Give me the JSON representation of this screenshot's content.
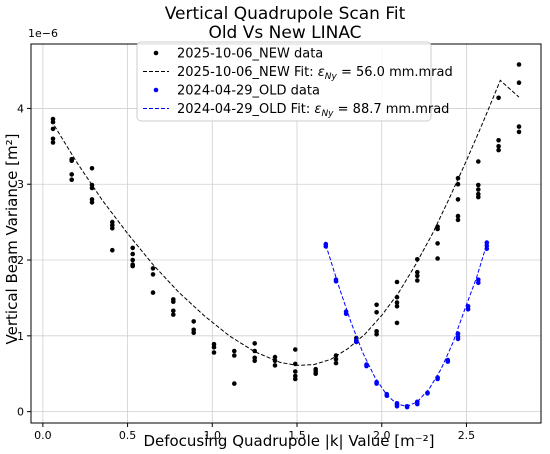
{
  "chart_data": {
    "type": "scatter",
    "title": "Vertical Quadrupole Scan Fit",
    "subtitle": "Old Vs New LINAC",
    "xlabel": "Defocusing Quadrupole |k| Value [m⁻²]",
    "ylabel": "Vertical Beam Variance [m²]",
    "y_multiplier": "1e−6",
    "xlim": [
      -0.07,
      2.94
    ],
    "ylim": [
      -0.15,
      4.85
    ],
    "xticks": [
      0.0,
      0.5,
      1.0,
      1.5,
      2.0,
      2.5
    ],
    "xtick_labels": [
      "0.0",
      "0.5",
      "1.0",
      "1.5",
      "2.0",
      "2.5"
    ],
    "yticks": [
      0,
      1,
      2,
      3,
      4
    ],
    "ytick_labels": [
      "0",
      "1",
      "2",
      "3",
      "4"
    ],
    "grid": true,
    "legend_position": "top-center",
    "series": [
      {
        "name": "2025-10-06_NEW data",
        "kind": "points",
        "color": "#000000",
        "points": [
          [
            0.06,
            3.86
          ],
          [
            0.06,
            3.82
          ],
          [
            0.06,
            3.73
          ],
          [
            0.06,
            3.6
          ],
          [
            0.06,
            3.55
          ],
          [
            0.17,
            3.33
          ],
          [
            0.17,
            3.31
          ],
          [
            0.17,
            3.13
          ],
          [
            0.17,
            3.06
          ],
          [
            0.29,
            3.21
          ],
          [
            0.29,
            2.99
          ],
          [
            0.29,
            2.95
          ],
          [
            0.29,
            2.8
          ],
          [
            0.29,
            2.76
          ],
          [
            0.41,
            2.5
          ],
          [
            0.41,
            2.46
          ],
          [
            0.41,
            2.42
          ],
          [
            0.41,
            2.13
          ],
          [
            0.53,
            2.16
          ],
          [
            0.53,
            2.08
          ],
          [
            0.53,
            2.0
          ],
          [
            0.53,
            1.94
          ],
          [
            0.53,
            1.92
          ],
          [
            0.65,
            1.89
          ],
          [
            0.65,
            1.81
          ],
          [
            0.65,
            1.57
          ],
          [
            0.77,
            1.48
          ],
          [
            0.77,
            1.45
          ],
          [
            0.77,
            1.33
          ],
          [
            0.77,
            1.28
          ],
          [
            0.89,
            1.19
          ],
          [
            0.89,
            1.08
          ],
          [
            0.89,
            1.04
          ],
          [
            1.01,
            0.89
          ],
          [
            1.01,
            0.85
          ],
          [
            1.01,
            0.78
          ],
          [
            1.13,
            0.8
          ],
          [
            1.13,
            0.74
          ],
          [
            1.13,
            0.37
          ],
          [
            1.25,
            0.9
          ],
          [
            1.25,
            0.8
          ],
          [
            1.25,
            0.71
          ],
          [
            1.25,
            0.67
          ],
          [
            1.37,
            0.72
          ],
          [
            1.37,
            0.67
          ],
          [
            1.37,
            0.61
          ],
          [
            1.49,
            0.82
          ],
          [
            1.49,
            0.63
          ],
          [
            1.49,
            0.53
          ],
          [
            1.49,
            0.47
          ],
          [
            1.49,
            0.43
          ],
          [
            1.61,
            0.56
          ],
          [
            1.61,
            0.53
          ],
          [
            1.61,
            0.5
          ],
          [
            1.73,
            0.74
          ],
          [
            1.73,
            0.69
          ],
          [
            1.73,
            0.64
          ],
          [
            1.85,
            0.97
          ],
          [
            1.85,
            0.94
          ],
          [
            1.85,
            0.92
          ],
          [
            1.97,
            1.41
          ],
          [
            1.97,
            1.31
          ],
          [
            1.97,
            1.06
          ],
          [
            1.97,
            1.02
          ],
          [
            2.09,
            1.71
          ],
          [
            2.09,
            1.51
          ],
          [
            2.09,
            1.44
          ],
          [
            2.09,
            1.39
          ],
          [
            2.09,
            1.17
          ],
          [
            2.21,
            2.01
          ],
          [
            2.21,
            1.84
          ],
          [
            2.21,
            1.79
          ],
          [
            2.21,
            1.73
          ],
          [
            2.33,
            2.44
          ],
          [
            2.33,
            2.41
          ],
          [
            2.33,
            2.22
          ],
          [
            2.33,
            2.02
          ],
          [
            2.45,
            3.08
          ],
          [
            2.45,
            3.0
          ],
          [
            2.45,
            2.8
          ],
          [
            2.45,
            2.58
          ],
          [
            2.45,
            2.53
          ],
          [
            2.57,
            3.3
          ],
          [
            2.57,
            2.99
          ],
          [
            2.57,
            2.93
          ],
          [
            2.57,
            2.87
          ],
          [
            2.57,
            2.83
          ],
          [
            2.69,
            4.14
          ],
          [
            2.69,
            3.58
          ],
          [
            2.69,
            3.5
          ],
          [
            2.69,
            3.45
          ],
          [
            2.81,
            4.58
          ],
          [
            2.81,
            4.34
          ],
          [
            2.81,
            3.76
          ],
          [
            2.81,
            3.69
          ]
        ]
      },
      {
        "name": "2025-10-06_NEW Fit: εNy = 56.0 mm.mrad",
        "kind": "fit",
        "color": "#000000",
        "epsilon_label": "ε",
        "epsilon_sub": "Ny",
        "points": [
          [
            0.05,
            3.84
          ],
          [
            0.2,
            3.29
          ],
          [
            0.35,
            2.79
          ],
          [
            0.5,
            2.35
          ],
          [
            0.65,
            1.94
          ],
          [
            0.8,
            1.58
          ],
          [
            0.95,
            1.27
          ],
          [
            1.1,
            1.0
          ],
          [
            1.25,
            0.79
          ],
          [
            1.4,
            0.65
          ],
          [
            1.5,
            0.61
          ],
          [
            1.6,
            0.62
          ],
          [
            1.7,
            0.69
          ],
          [
            1.8,
            0.83
          ],
          [
            1.9,
            1.02
          ],
          [
            2.0,
            1.27
          ],
          [
            2.1,
            1.57
          ],
          [
            2.2,
            1.94
          ],
          [
            2.3,
            2.35
          ],
          [
            2.4,
            2.82
          ],
          [
            2.5,
            3.31
          ],
          [
            2.6,
            3.83
          ],
          [
            2.7,
            4.37
          ],
          [
            2.81,
            4.15
          ]
        ]
      },
      {
        "name": "2024-04-29_OLD data",
        "kind": "points",
        "color": "#0000ff",
        "points": [
          [
            1.67,
            2.21
          ],
          [
            1.67,
            2.18
          ],
          [
            1.73,
            1.74
          ],
          [
            1.73,
            1.72
          ],
          [
            1.79,
            1.32
          ],
          [
            1.79,
            1.29
          ],
          [
            1.85,
            0.94
          ],
          [
            1.85,
            0.92
          ],
          [
            1.91,
            0.62
          ],
          [
            1.91,
            0.6
          ],
          [
            1.97,
            0.39
          ],
          [
            1.97,
            0.37
          ],
          [
            2.03,
            0.23
          ],
          [
            2.03,
            0.21
          ],
          [
            2.09,
            0.11
          ],
          [
            2.09,
            0.09
          ],
          [
            2.09,
            0.07
          ],
          [
            2.15,
            0.07
          ],
          [
            2.15,
            0.06
          ],
          [
            2.21,
            0.13
          ],
          [
            2.21,
            0.1
          ],
          [
            2.27,
            0.25
          ],
          [
            2.27,
            0.24
          ],
          [
            2.33,
            0.45
          ],
          [
            2.33,
            0.43
          ],
          [
            2.39,
            0.68
          ],
          [
            2.39,
            0.66
          ],
          [
            2.45,
            1.03
          ],
          [
            2.45,
            0.99
          ],
          [
            2.45,
            0.96
          ],
          [
            2.51,
            1.39
          ],
          [
            2.51,
            1.35
          ],
          [
            2.57,
            1.74
          ],
          [
            2.57,
            1.7
          ],
          [
            2.62,
            2.23
          ],
          [
            2.62,
            2.19
          ],
          [
            2.62,
            2.15
          ]
        ]
      },
      {
        "name": "2024-04-29_OLD Fit: εNy = 88.7 mm.mrad",
        "kind": "fit",
        "color": "#0000ff",
        "epsilon_label": "ε",
        "epsilon_sub": "Ny",
        "points": [
          [
            1.67,
            2.2
          ],
          [
            1.75,
            1.63
          ],
          [
            1.82,
            1.17
          ],
          [
            1.89,
            0.77
          ],
          [
            1.96,
            0.45
          ],
          [
            2.03,
            0.22
          ],
          [
            2.09,
            0.1
          ],
          [
            2.15,
            0.07
          ],
          [
            2.21,
            0.13
          ],
          [
            2.28,
            0.3
          ],
          [
            2.35,
            0.56
          ],
          [
            2.42,
            0.91
          ],
          [
            2.49,
            1.35
          ],
          [
            2.56,
            1.77
          ],
          [
            2.62,
            2.21
          ]
        ]
      }
    ],
    "legend": [
      {
        "label": "2025-10-06_NEW data",
        "marker": "dot",
        "color": "#000000"
      },
      {
        "prefix": "2025-10-06_NEW Fit: ",
        "eps": "ε",
        "sub": "Ny",
        "suffix": " = 56.0 mm.mrad",
        "marker": "dashed",
        "color": "#000000"
      },
      {
        "label": "2024-04-29_OLD data",
        "marker": "dot",
        "color": "#0000ff"
      },
      {
        "prefix": "2024-04-29_OLD Fit: ",
        "eps": "ε",
        "sub": "Ny",
        "suffix": " = 88.7 mm.mrad",
        "marker": "dashed",
        "color": "#0000ff"
      }
    ]
  }
}
